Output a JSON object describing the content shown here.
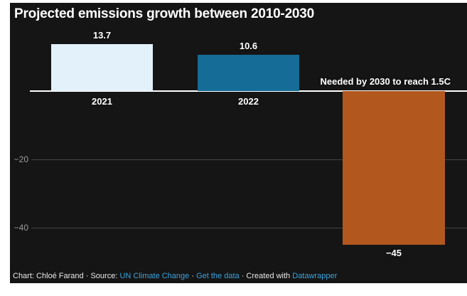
{
  "chart_data": {
    "type": "bar",
    "title": "Projected emissions growth between 2010-2030",
    "categories": [
      "2021",
      "2022",
      "Needed by 2030 to reach 1.5C"
    ],
    "values": [
      13.7,
      10.6,
      -45
    ],
    "value_labels": [
      "13.7",
      "10.6",
      "−45"
    ],
    "bar_colors": [
      "#e3f1fb",
      "#156c96",
      "#b2571e"
    ],
    "xlabel": "",
    "ylabel": "",
    "ylim": [
      -50,
      15
    ],
    "yticks": [
      -20,
      -40
    ],
    "ytick_labels": [
      "−20",
      "−40"
    ],
    "grid": "horizontal",
    "legend": "none",
    "baseline_value": 0
  },
  "colors": {
    "background": "#151515",
    "page": "#ffffff",
    "zero_line": "#ffffff",
    "gridline": "#454545",
    "tick_text": "#9c9c9c",
    "label_text": "#ffffff",
    "link": "#3ba3dc",
    "footer_text": "#e8e8e8"
  },
  "footer": {
    "credit": "Chart: Chloé Farand",
    "sep1": "·",
    "source_label": "Source:",
    "source_link": "UN Climate Change",
    "sep2": "·",
    "data_link": "Get the data",
    "sep3": "·",
    "created_label": "Created with",
    "brand_link": "Datawrapper"
  }
}
